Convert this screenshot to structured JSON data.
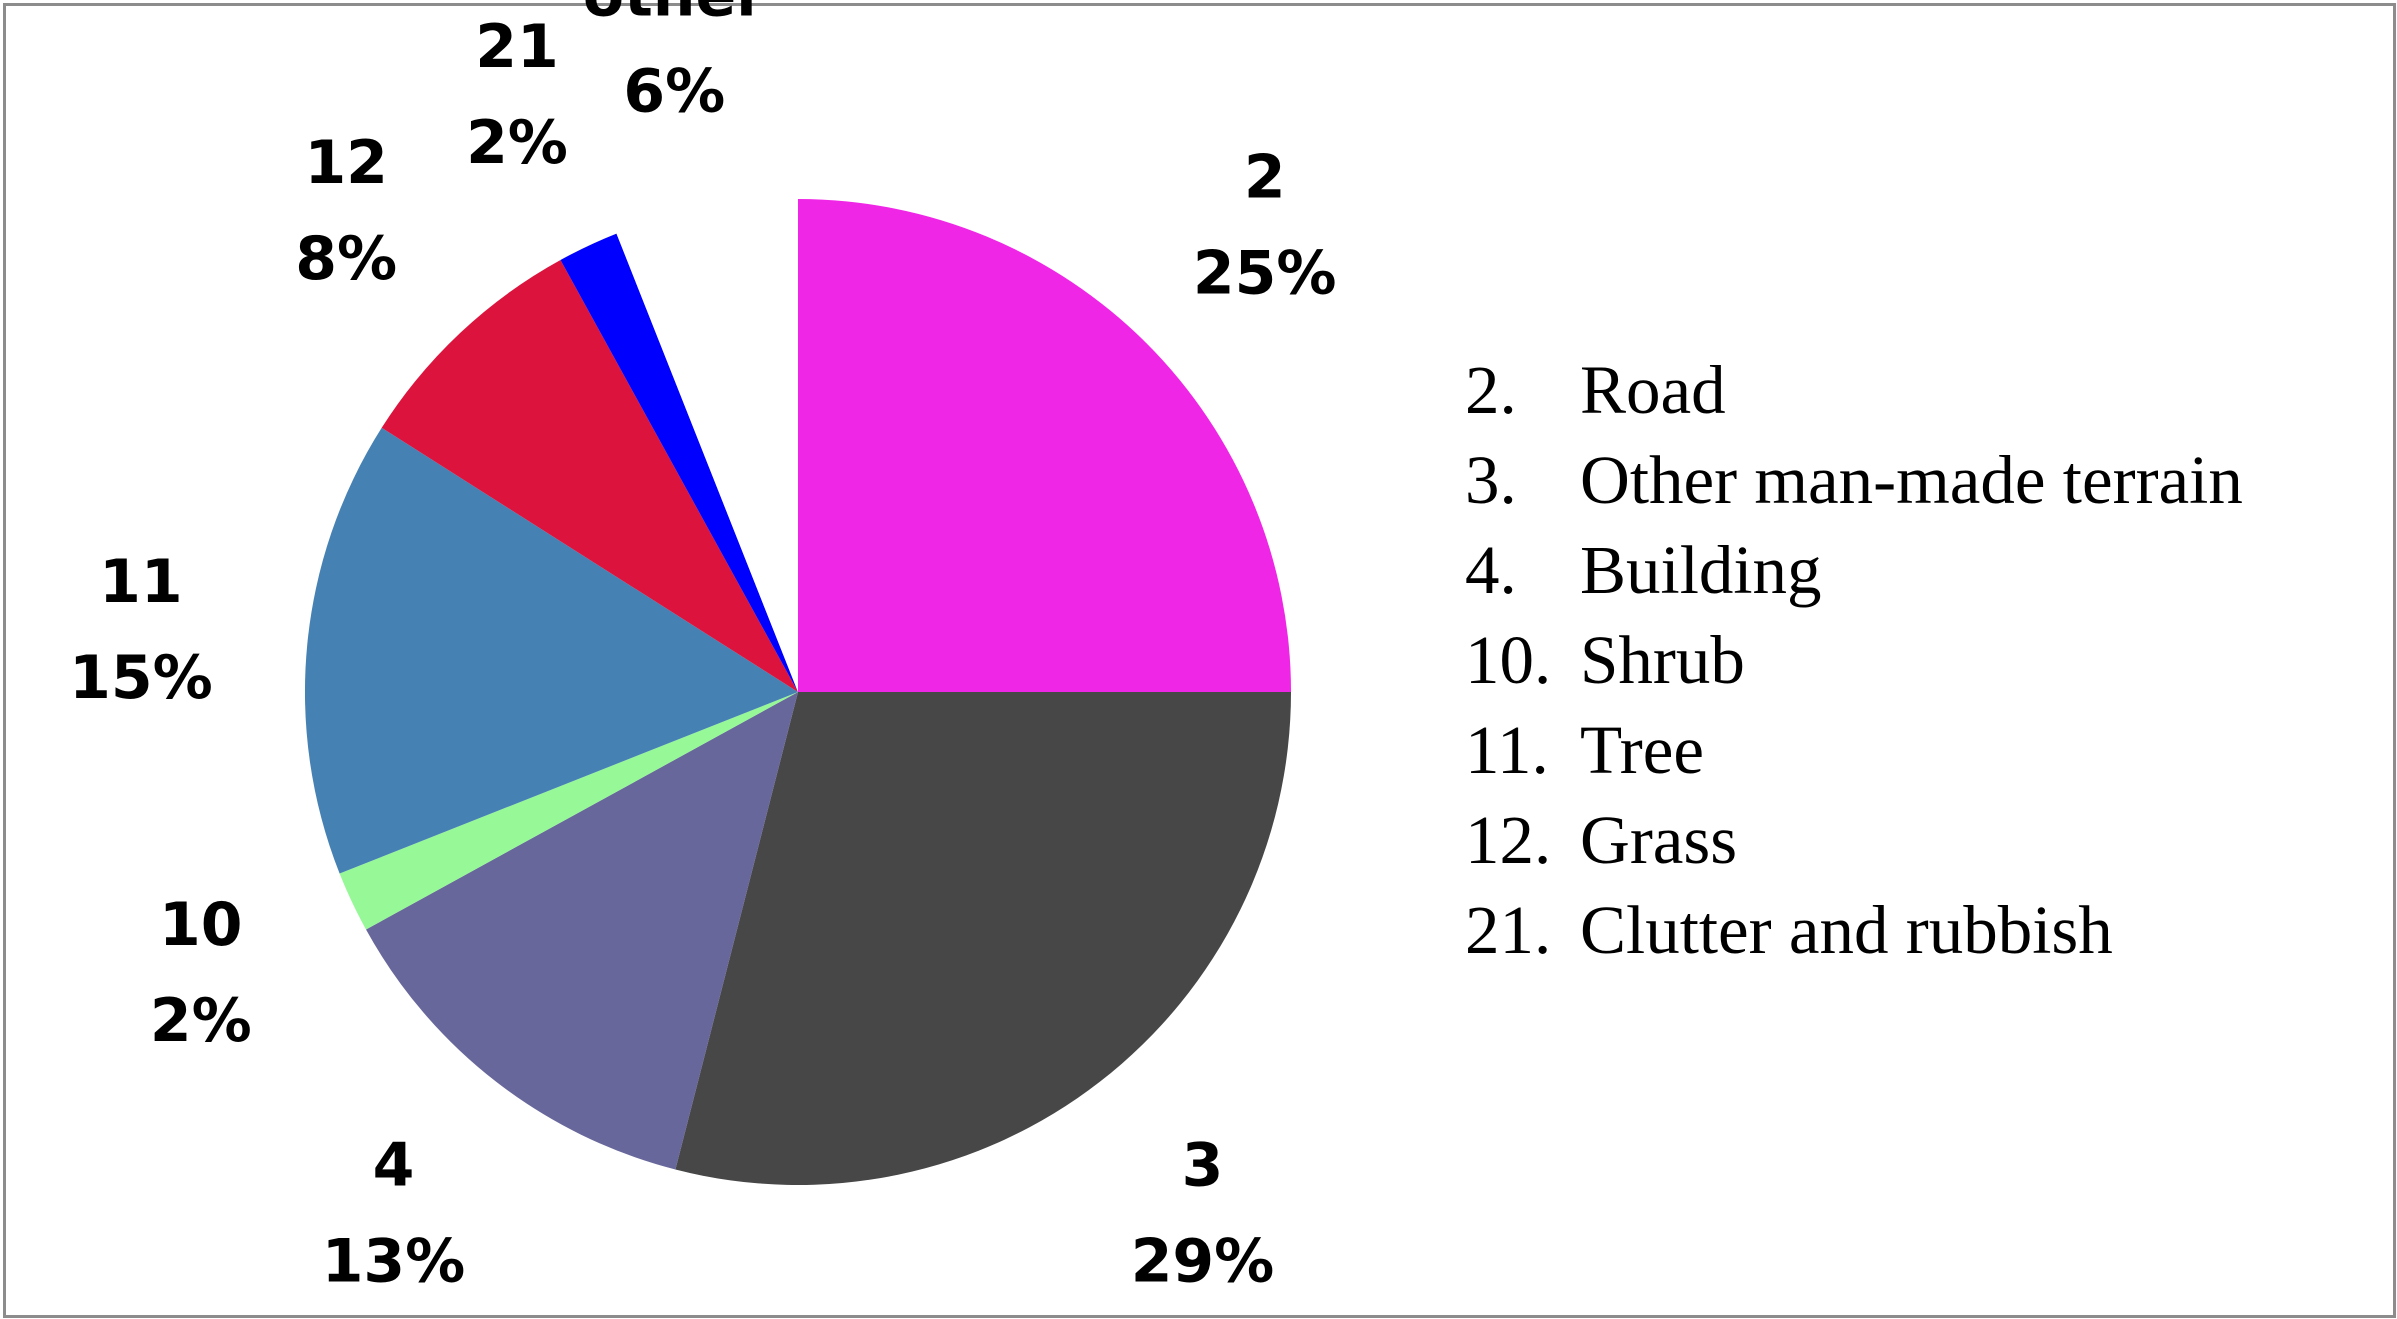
{
  "chart_data": {
    "type": "pie",
    "title": "",
    "start_angle_deg": 0,
    "direction": "clockwise",
    "slices": [
      {
        "code": "2",
        "pct_label": "25%",
        "value": 25,
        "color": "#f026e6"
      },
      {
        "code": "3",
        "pct_label": "29%",
        "value": 29,
        "color": "#474747"
      },
      {
        "code": "4",
        "pct_label": "13%",
        "value": 13,
        "color": "#67679b"
      },
      {
        "code": "10",
        "pct_label": "2%",
        "value": 2,
        "color": "#97f897"
      },
      {
        "code": "11",
        "pct_label": "15%",
        "value": 15,
        "color": "#4681b4"
      },
      {
        "code": "12",
        "pct_label": "8%",
        "value": 8,
        "color": "#dc133c"
      },
      {
        "code": "21",
        "pct_label": "2%",
        "value": 2,
        "color": "#0000ff"
      },
      {
        "code": "other",
        "pct_label": "6%",
        "value": 6,
        "color": "#ffffff"
      }
    ],
    "legend": {
      "placement": "right",
      "items": [
        {
          "num": "2.",
          "label": "Road"
        },
        {
          "num": "3.",
          "label": "Other man-made terrain"
        },
        {
          "num": "4.",
          "label": "Building"
        },
        {
          "num": "10.",
          "label": "Shrub"
        },
        {
          "num": "11.",
          "label": "Tree"
        },
        {
          "num": "12.",
          "label": "Grass"
        },
        {
          "num": "21.",
          "label": "Clutter and rubbish"
        }
      ]
    }
  }
}
